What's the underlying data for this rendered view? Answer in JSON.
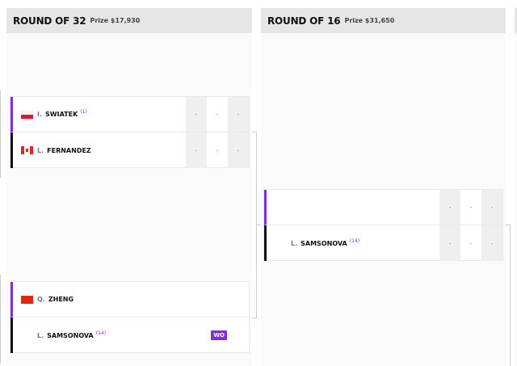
{
  "rounds": [
    {
      "title": "ROUND OF 32",
      "prize": "Prize $17,930"
    },
    {
      "title": "ROUND OF 16",
      "prize": "Prize $31,650"
    }
  ],
  "matches": [
    {
      "p1": {
        "initial": "I.",
        "name": "SWIATEK",
        "seed": "(1)",
        "flag": "poland-flag",
        "scores": [
          "-",
          "-",
          "-"
        ]
      },
      "p2": {
        "initial": "L.",
        "name": "FERNANDEZ",
        "seed": "",
        "flag": "canada-flag",
        "scores": [
          "-",
          "-",
          "-"
        ]
      }
    },
    {
      "p1": {
        "initial": "Q.",
        "name": "ZHENG",
        "seed": "",
        "flag": "china-flag"
      },
      "p2": {
        "initial": "L.",
        "name": "SAMSONOVA",
        "seed": "(14)",
        "badge": "WO"
      }
    },
    {
      "p1": {
        "scores": [
          "-",
          "-",
          "-"
        ]
      },
      "p2": {
        "initial": "L.",
        "name": "SAMSONOVA",
        "seed": "(14)",
        "scores": [
          "-",
          "-",
          "-"
        ]
      }
    }
  ],
  "colors": {
    "accent": "#7b2fe0",
    "header_bg": "#e6e6e6"
  }
}
